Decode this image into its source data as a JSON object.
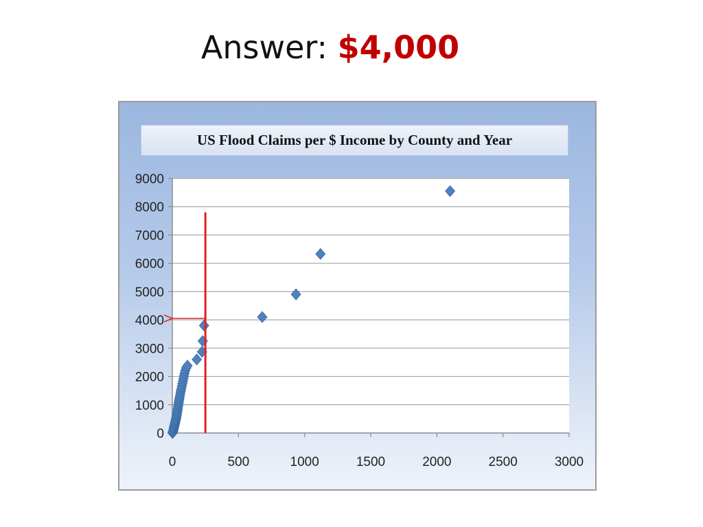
{
  "heading": {
    "prefix": "Answer: ",
    "amount": "$4,000"
  },
  "colors": {
    "amount": "#c00000",
    "marker": "#4f81bd",
    "marker_edge": "#3a6aa3",
    "annotation": "#e02020",
    "grid": "#a6a6a6"
  },
  "chart_data": {
    "type": "scatter",
    "title": "US Flood Claims per $ Income by County and Year",
    "xlabel": "",
    "ylabel": "",
    "xlim": [
      0,
      3000
    ],
    "ylim": [
      0,
      9000
    ],
    "x_ticks": [
      0,
      500,
      1000,
      1500,
      2000,
      2500,
      3000
    ],
    "y_ticks": [
      0,
      1000,
      2000,
      3000,
      4000,
      5000,
      6000,
      7000,
      8000,
      9000
    ],
    "grid": "horizontal",
    "legend": "none",
    "marker": "diamond",
    "series": [
      {
        "points": [
          [
            2,
            0
          ],
          [
            4,
            30
          ],
          [
            6,
            60
          ],
          [
            8,
            100
          ],
          [
            10,
            140
          ],
          [
            12,
            180
          ],
          [
            14,
            220
          ],
          [
            16,
            260
          ],
          [
            18,
            300
          ],
          [
            20,
            340
          ],
          [
            22,
            380
          ],
          [
            24,
            420
          ],
          [
            26,
            460
          ],
          [
            28,
            500
          ],
          [
            30,
            550
          ],
          [
            32,
            600
          ],
          [
            34,
            650
          ],
          [
            36,
            700
          ],
          [
            38,
            760
          ],
          [
            40,
            820
          ],
          [
            42,
            880
          ],
          [
            44,
            940
          ],
          [
            46,
            1000
          ],
          [
            48,
            1060
          ],
          [
            50,
            1120
          ],
          [
            52,
            1180
          ],
          [
            55,
            1250
          ],
          [
            58,
            1320
          ],
          [
            61,
            1400
          ],
          [
            64,
            1480
          ],
          [
            68,
            1560
          ],
          [
            72,
            1650
          ],
          [
            76,
            1740
          ],
          [
            80,
            1830
          ],
          [
            84,
            1920
          ],
          [
            88,
            2010
          ],
          [
            92,
            2100
          ],
          [
            97,
            2200
          ],
          [
            105,
            2300
          ],
          [
            115,
            2380
          ],
          [
            185,
            2600
          ],
          [
            225,
            2870
          ],
          [
            230,
            3250
          ],
          [
            240,
            3800
          ],
          [
            680,
            4100
          ],
          [
            935,
            4900
          ],
          [
            1120,
            6330
          ],
          [
            2100,
            8550
          ]
        ]
      }
    ],
    "annotations": [
      {
        "type": "vline",
        "x": 250,
        "y_from": 0,
        "y_to": 7800
      },
      {
        "type": "arrow",
        "from": [
          250,
          4050
        ],
        "to": [
          0,
          4050
        ]
      }
    ]
  }
}
